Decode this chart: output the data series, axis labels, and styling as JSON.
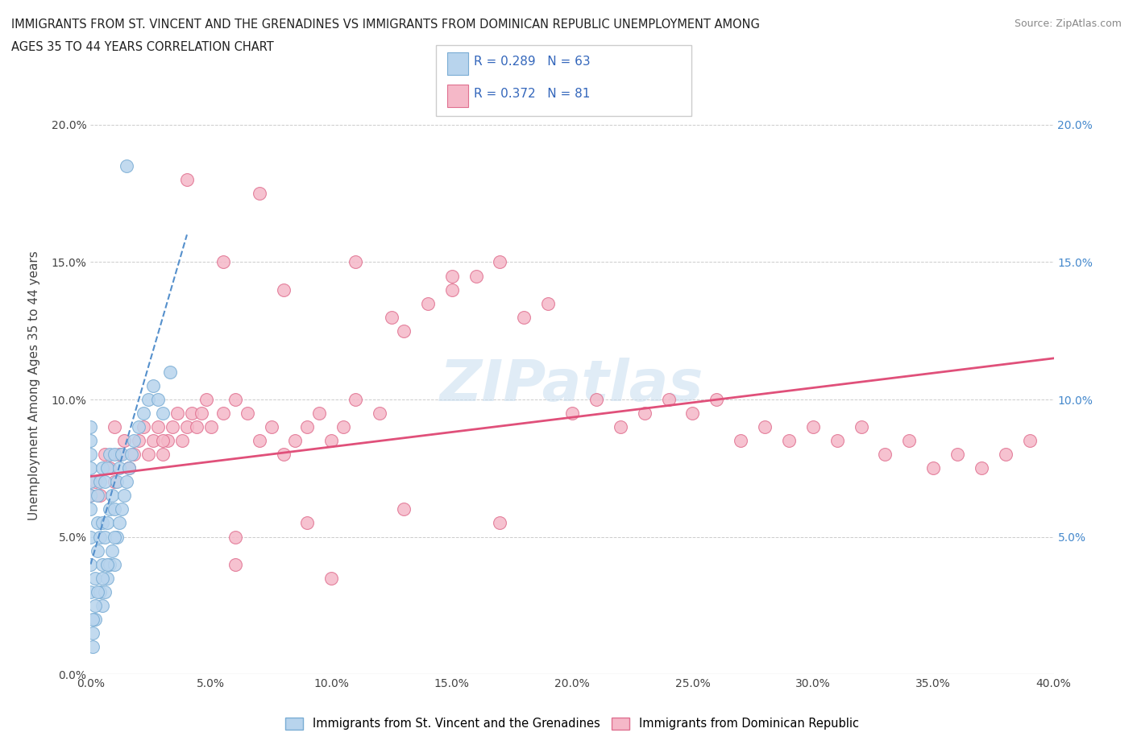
{
  "title_line1": "IMMIGRANTS FROM ST. VINCENT AND THE GRENADINES VS IMMIGRANTS FROM DOMINICAN REPUBLIC UNEMPLOYMENT AMONG",
  "title_line2": "AGES 35 TO 44 YEARS CORRELATION CHART",
  "source_text": "Source: ZipAtlas.com",
  "ylabel": "Unemployment Among Ages 35 to 44 years",
  "xlim": [
    0.0,
    0.4
  ],
  "ylim": [
    0.0,
    0.21
  ],
  "xticks": [
    0.0,
    0.05,
    0.1,
    0.15,
    0.2,
    0.25,
    0.3,
    0.35,
    0.4
  ],
  "xticklabels": [
    "0.0%",
    "5.0%",
    "10.0%",
    "15.0%",
    "20.0%",
    "25.0%",
    "30.0%",
    "35.0%",
    "40.0%"
  ],
  "yticks": [
    0.0,
    0.05,
    0.1,
    0.15,
    0.2
  ],
  "yticklabels": [
    "0.0%",
    "5.0%",
    "10.0%",
    "15.0%",
    "20.0%"
  ],
  "right_yticks": [
    0.05,
    0.1,
    0.15,
    0.2
  ],
  "right_yticklabels": [
    "5.0%",
    "10.0%",
    "15.0%",
    "20.0%"
  ],
  "series1_color": "#b8d4ed",
  "series1_edge": "#7aadd4",
  "series2_color": "#f5b8c8",
  "series2_edge": "#e07090",
  "trendline1_color": "#5590cc",
  "trendline2_color": "#e0507a",
  "R1": 0.289,
  "N1": 63,
  "R2": 0.372,
  "N2": 81,
  "legend1_label": "Immigrants from St. Vincent and the Grenadines",
  "legend2_label": "Immigrants from Dominican Republic",
  "watermark": "ZIPatlas",
  "background_color": "#ffffff",
  "scatter1_x": [
    0.0,
    0.0,
    0.0,
    0.0,
    0.0,
    0.0,
    0.0,
    0.0,
    0.0,
    0.0,
    0.002,
    0.002,
    0.003,
    0.003,
    0.003,
    0.004,
    0.004,
    0.004,
    0.005,
    0.005,
    0.005,
    0.005,
    0.006,
    0.006,
    0.006,
    0.007,
    0.007,
    0.007,
    0.008,
    0.008,
    0.008,
    0.009,
    0.009,
    0.01,
    0.01,
    0.01,
    0.011,
    0.011,
    0.012,
    0.012,
    0.013,
    0.013,
    0.014,
    0.015,
    0.016,
    0.017,
    0.018,
    0.02,
    0.022,
    0.024,
    0.026,
    0.028,
    0.03,
    0.033,
    0.001,
    0.001,
    0.001,
    0.002,
    0.003,
    0.005,
    0.007,
    0.01,
    0.015
  ],
  "scatter1_y": [
    0.03,
    0.04,
    0.05,
    0.06,
    0.065,
    0.07,
    0.075,
    0.08,
    0.085,
    0.09,
    0.02,
    0.035,
    0.045,
    0.055,
    0.065,
    0.03,
    0.05,
    0.07,
    0.025,
    0.04,
    0.055,
    0.075,
    0.03,
    0.05,
    0.07,
    0.035,
    0.055,
    0.075,
    0.04,
    0.06,
    0.08,
    0.045,
    0.065,
    0.04,
    0.06,
    0.08,
    0.05,
    0.07,
    0.055,
    0.075,
    0.06,
    0.08,
    0.065,
    0.07,
    0.075,
    0.08,
    0.085,
    0.09,
    0.095,
    0.1,
    0.105,
    0.1,
    0.095,
    0.11,
    0.01,
    0.02,
    0.015,
    0.025,
    0.03,
    0.035,
    0.04,
    0.05,
    0.185
  ],
  "scatter2_x": [
    0.0,
    0.002,
    0.004,
    0.006,
    0.008,
    0.01,
    0.01,
    0.012,
    0.014,
    0.016,
    0.018,
    0.02,
    0.022,
    0.024,
    0.026,
    0.028,
    0.03,
    0.032,
    0.034,
    0.036,
    0.038,
    0.04,
    0.042,
    0.044,
    0.046,
    0.048,
    0.05,
    0.055,
    0.06,
    0.065,
    0.07,
    0.075,
    0.08,
    0.085,
    0.09,
    0.095,
    0.1,
    0.105,
    0.11,
    0.12,
    0.125,
    0.13,
    0.14,
    0.15,
    0.16,
    0.17,
    0.18,
    0.19,
    0.2,
    0.21,
    0.22,
    0.23,
    0.24,
    0.25,
    0.26,
    0.27,
    0.28,
    0.29,
    0.3,
    0.31,
    0.32,
    0.33,
    0.34,
    0.35,
    0.36,
    0.37,
    0.38,
    0.39,
    0.055,
    0.08,
    0.11,
    0.15,
    0.06,
    0.09,
    0.13,
    0.17,
    0.03,
    0.06,
    0.1,
    0.04,
    0.07
  ],
  "scatter2_y": [
    0.065,
    0.07,
    0.065,
    0.08,
    0.075,
    0.07,
    0.09,
    0.08,
    0.085,
    0.075,
    0.08,
    0.085,
    0.09,
    0.08,
    0.085,
    0.09,
    0.08,
    0.085,
    0.09,
    0.095,
    0.085,
    0.09,
    0.095,
    0.09,
    0.095,
    0.1,
    0.09,
    0.095,
    0.1,
    0.095,
    0.085,
    0.09,
    0.08,
    0.085,
    0.09,
    0.095,
    0.085,
    0.09,
    0.1,
    0.095,
    0.13,
    0.125,
    0.135,
    0.14,
    0.145,
    0.15,
    0.13,
    0.135,
    0.095,
    0.1,
    0.09,
    0.095,
    0.1,
    0.095,
    0.1,
    0.085,
    0.09,
    0.085,
    0.09,
    0.085,
    0.09,
    0.08,
    0.085,
    0.075,
    0.08,
    0.075,
    0.08,
    0.085,
    0.15,
    0.14,
    0.15,
    0.145,
    0.05,
    0.055,
    0.06,
    0.055,
    0.085,
    0.04,
    0.035,
    0.18,
    0.175
  ],
  "trendline1_x0": 0.0,
  "trendline1_x1": 0.04,
  "trendline1_y0": 0.04,
  "trendline1_y1": 0.16,
  "trendline2_x0": 0.0,
  "trendline2_x1": 0.4,
  "trendline2_y0": 0.072,
  "trendline2_y1": 0.115
}
